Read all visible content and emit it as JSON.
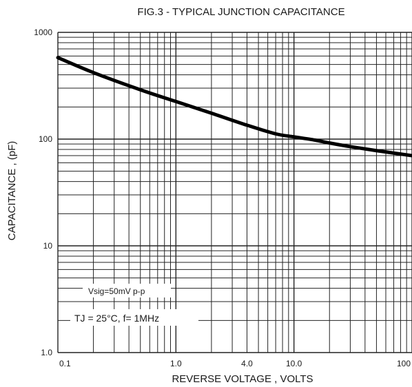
{
  "chart_data": {
    "type": "line",
    "title": "FIG.3 - TYPICAL JUNCTION CAPACITANCE",
    "xlabel": "REVERSE VOLTAGE , VOLTS",
    "ylabel": "CAPACITANCE , (pF)",
    "x_scale": "log",
    "y_scale": "log",
    "xlim": [
      0.1,
      100
    ],
    "ylim": [
      1.0,
      1000
    ],
    "grid": true,
    "x_tick_labels": [
      {
        "value": 0.1,
        "label": "0.1"
      },
      {
        "value": 1,
        "label": "1.0"
      },
      {
        "value": 4,
        "label": "4.0"
      },
      {
        "value": 10,
        "label": "10.0"
      },
      {
        "value": 100,
        "label": "100"
      }
    ],
    "y_tick_labels": [
      {
        "value": 1000,
        "label": "1000"
      },
      {
        "value": 100,
        "label": "100"
      },
      {
        "value": 10,
        "label": "10"
      },
      {
        "value": 1,
        "label": "1.0"
      }
    ],
    "series": [
      {
        "x": [
          0.1,
          0.2,
          0.5,
          1,
          2,
          4,
          7,
          10,
          15,
          20,
          30,
          50,
          100
        ],
        "y": [
          580,
          420,
          290,
          225,
          175,
          135,
          112,
          105,
          98,
          92,
          85,
          78,
          70
        ]
      }
    ],
    "annotations": [
      "Vsig=50mV p-p",
      "TJ = 25°C,   f= 1MHz"
    ]
  }
}
